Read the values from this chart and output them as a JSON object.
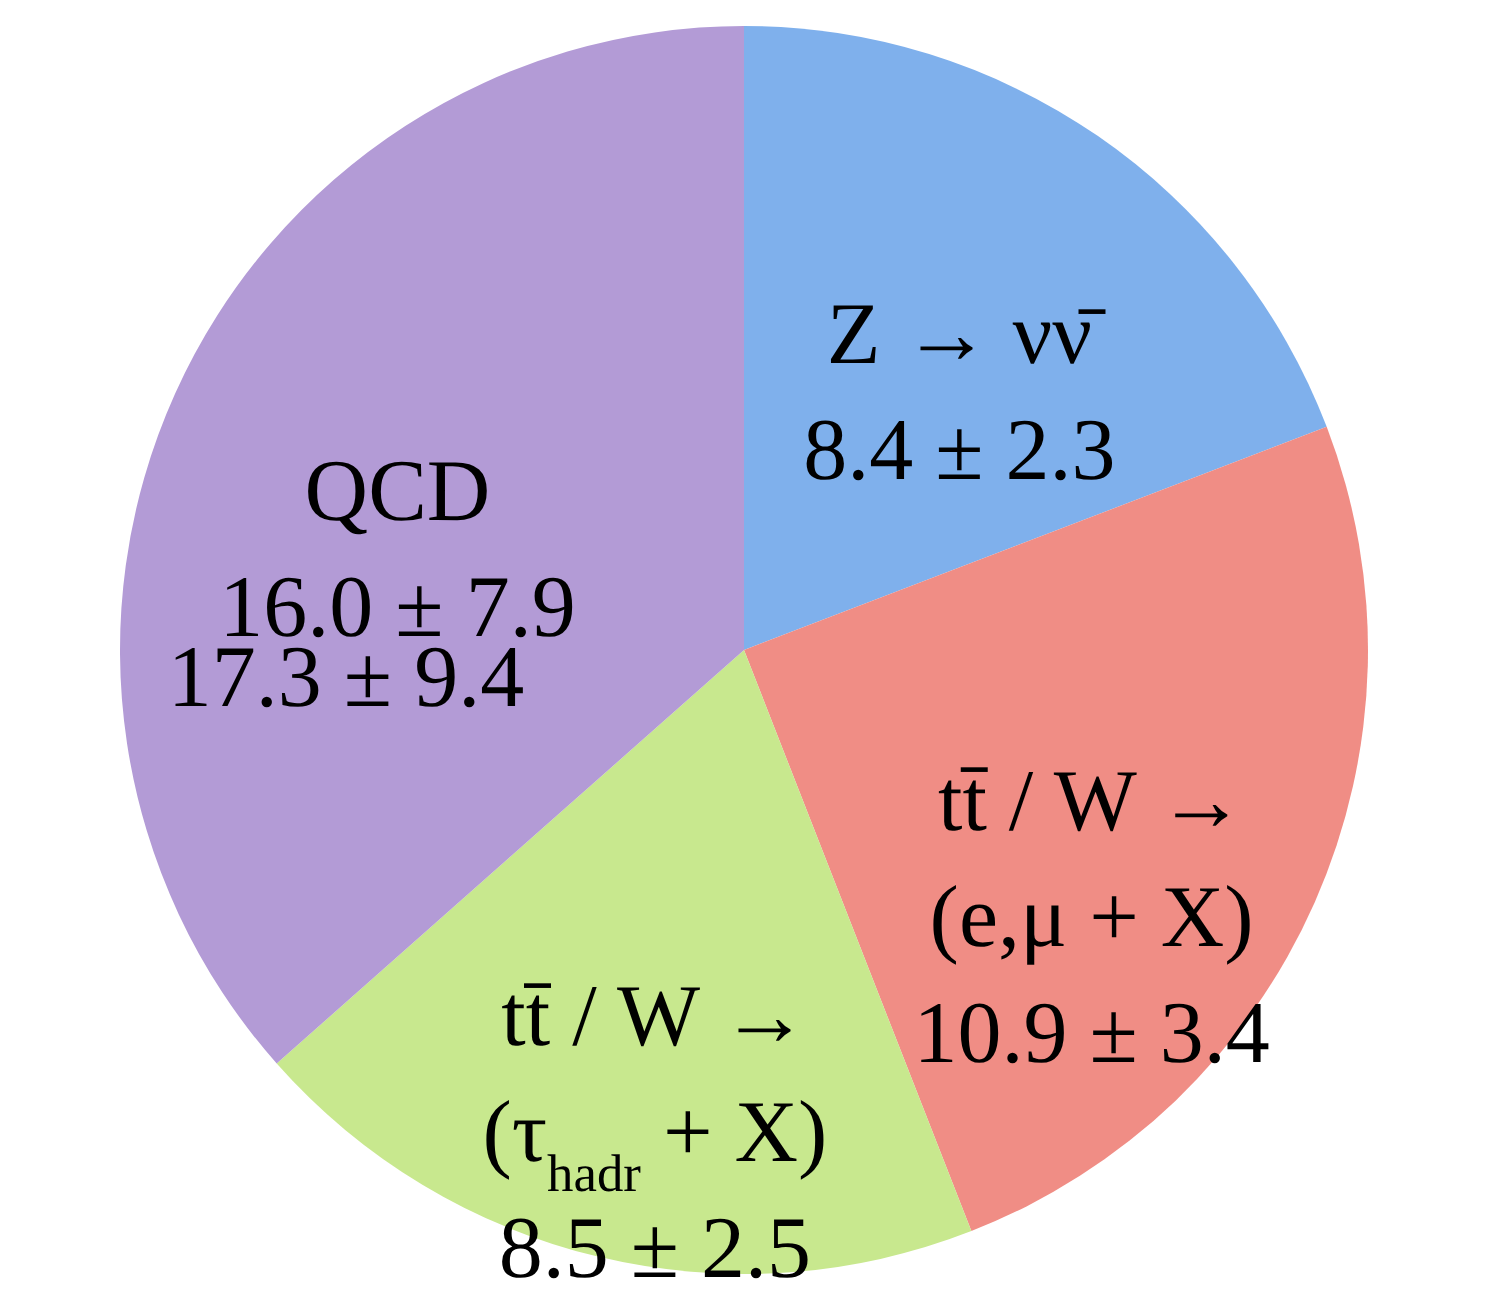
{
  "chart_data": {
    "type": "pie",
    "categories": [
      "Z → νν̄",
      "tt̄ / W →\n(e,μ + X)",
      "tt̄ / W →\n(τ$_{hadr}$ + X)",
      "QCD"
    ],
    "values": [
      8.4,
      10.9,
      8.5,
      16.0
    ],
    "value_labels": [
      "8.4 ± 2.3",
      "10.9 ± 3.4",
      "8.5 ± 2.5",
      "16.0 ± 7.9"
    ],
    "colors": [
      "#7fb0ec",
      "#f08d85",
      "#c8e88e",
      "#b39bd6"
    ],
    "annotations": [
      "17.3 ± 9.4"
    ]
  }
}
